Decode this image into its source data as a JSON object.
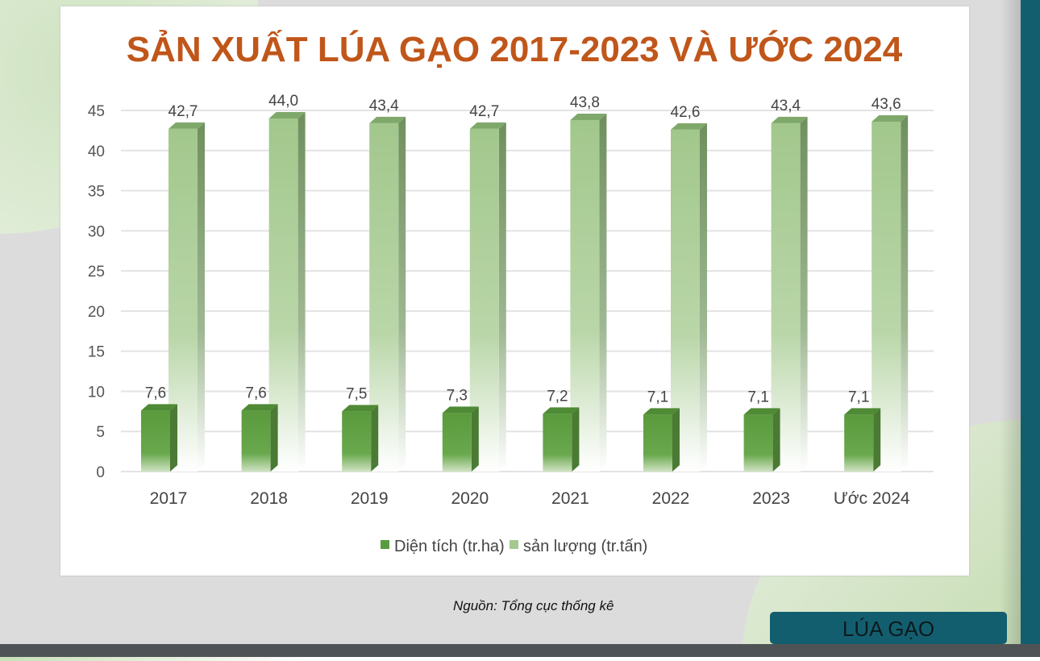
{
  "chart_data": {
    "type": "bar",
    "title": "SẢN XUẤT LÚA GẠO 2017-2023 VÀ ƯỚC 2024",
    "categories": [
      "2017",
      "2018",
      "2019",
      "2020",
      "2021",
      "2022",
      "2023",
      "Ước 2024"
    ],
    "series": [
      {
        "name": "Diện tích (tr.ha)",
        "color": "#5b9b3f",
        "values": [
          7.6,
          7.6,
          7.5,
          7.3,
          7.2,
          7.1,
          7.1,
          7.1
        ],
        "labels": [
          "7,6",
          "7,6",
          "7,5",
          "7,3",
          "7,2",
          "7,1",
          "7,1",
          "7,1"
        ]
      },
      {
        "name": "sản lượng (tr.tấn)",
        "color": "#a4c98f",
        "values": [
          42.7,
          44.0,
          43.4,
          42.7,
          43.8,
          42.6,
          43.4,
          43.6
        ],
        "labels": [
          "42,7",
          "44,0",
          "43,4",
          "42,7",
          "43,8",
          "42,6",
          "43,4",
          "43,6"
        ]
      }
    ],
    "yticks": [
      "0",
      "5",
      "10",
      "15",
      "20",
      "25",
      "30",
      "35",
      "40",
      "45"
    ],
    "ylim": [
      0,
      45
    ],
    "grid": true,
    "legend": "bottom"
  },
  "source": "Nguồn: Tổng cục thống kê",
  "badge": "LÚA GẠO"
}
